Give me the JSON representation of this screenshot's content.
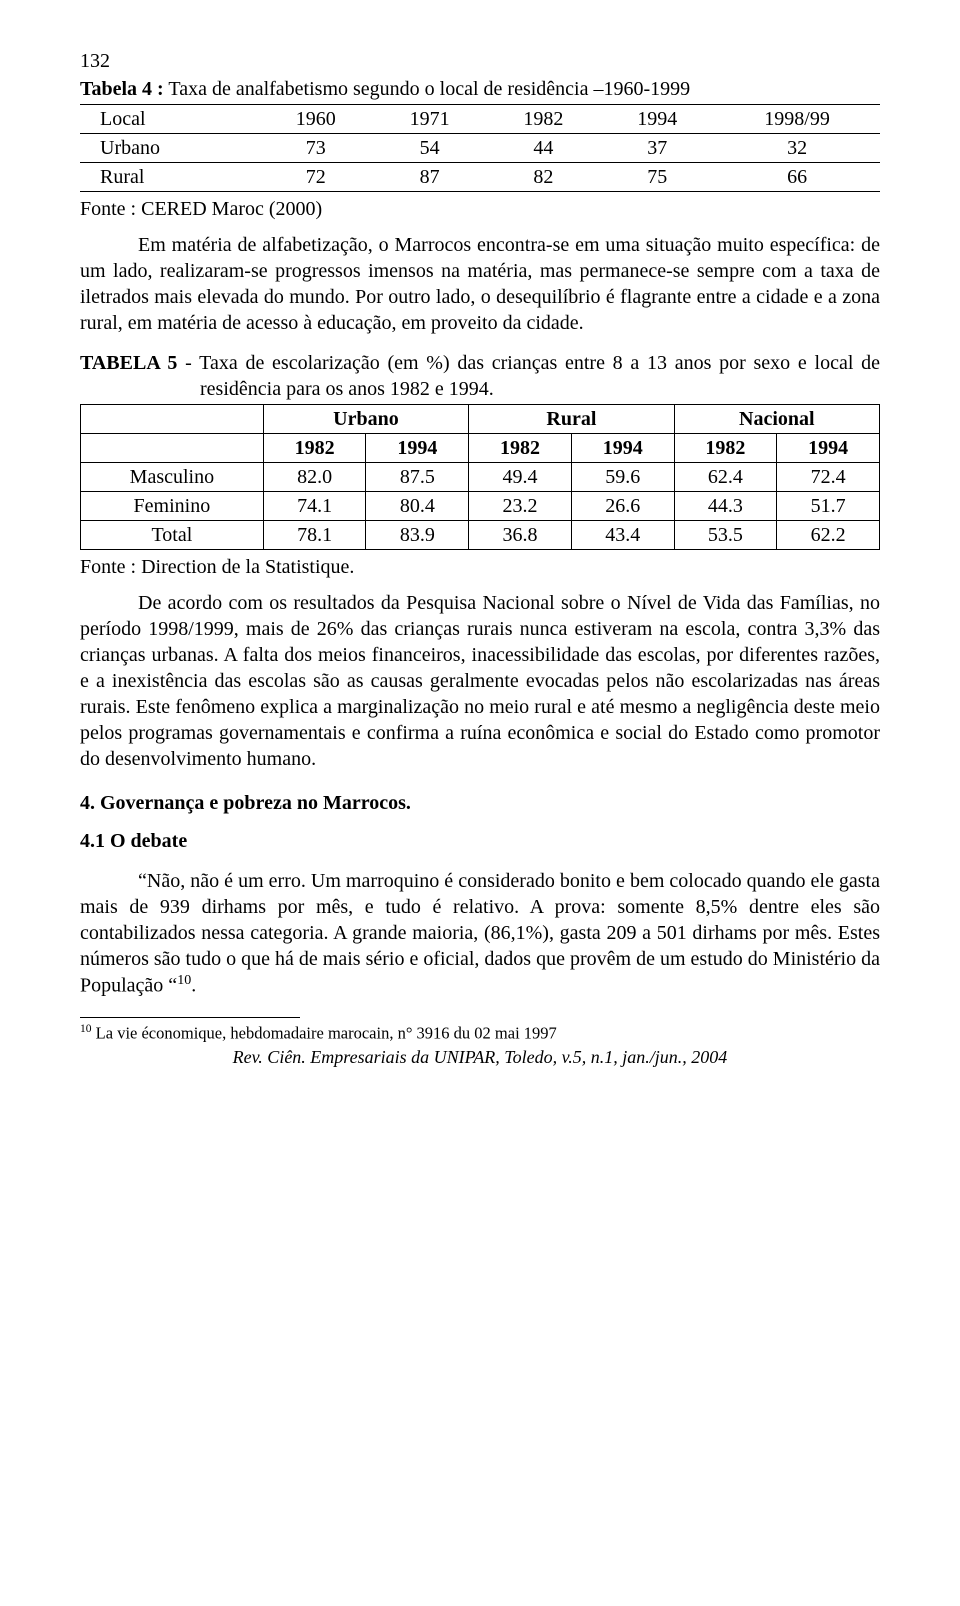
{
  "pageNumber": "132",
  "table4": {
    "title_lead": "Tabela 4 :",
    "title_rest": " Taxa de analfabetismo segundo o local de residência –1960-1999",
    "headers": [
      "Local",
      "1960",
      "1971",
      "1982",
      "1994",
      "1998/99"
    ],
    "rows": [
      {
        "label": "Urbano",
        "v": [
          "73",
          "54",
          "44",
          "37",
          "32"
        ]
      },
      {
        "label": "Rural",
        "v": [
          "72",
          "87",
          "82",
          "75",
          "66"
        ]
      }
    ],
    "source": "Fonte : CERED Maroc (2000)"
  },
  "para1": "Em matéria de alfabetização, o Marrocos encontra-se em uma situação muito específica: de um lado, realizaram-se progressos imensos na matéria, mas permanece-se sempre com a taxa de iletrados mais elevada do mundo. Por outro lado, o desequilíbrio é flagrante entre a cidade e a zona rural, em matéria de acesso à educação, em proveito da cidade.",
  "table5": {
    "title_lead": "TABELA 5",
    "title_rest": " - Taxa de escolarização (em %) das crianças entre 8 a 13 anos por sexo e local de residência para os anos 1982 e 1994.",
    "groupHeaders": [
      "Urbano",
      "Rural",
      "Nacional"
    ],
    "yearHeaders": [
      "1982",
      "1994",
      "1982",
      "1994",
      "1982",
      "1994"
    ],
    "rows": [
      {
        "label": "Masculino",
        "v": [
          "82.0",
          "87.5",
          "49.4",
          "59.6",
          "62.4",
          "72.4"
        ]
      },
      {
        "label": "Feminino",
        "v": [
          "74.1",
          "80.4",
          "23.2",
          "26.6",
          "44.3",
          "51.7"
        ]
      },
      {
        "label": "Total",
        "v": [
          "78.1",
          "83.9",
          "36.8",
          "43.4",
          "53.5",
          "62.2"
        ]
      }
    ],
    "source": "Fonte : Direction de la Statistique."
  },
  "para2": "De acordo com os resultados da Pesquisa Nacional sobre o Nível de Vida das Famílias, no período 1998/1999, mais de 26% das crianças rurais nunca estiveram na escola, contra 3,3% das crianças urbanas. A falta dos meios financeiros, inacessibilidade das escolas, por diferentes razões, e a inexistência das escolas são as causas geralmente evocadas pelos não escolarizadas nas áreas rurais. Este fenômeno explica a marginalização no meio rural e até mesmo a negligência deste meio pelos programas governamentais e confirma a ruína econômica e social do Estado como promotor do desenvolvimento humano.",
  "section4": "4. Governança e pobreza no Marrocos.",
  "section41": "4.1 O debate",
  "para3_a": "“Não, não é um erro. Um marroquino é considerado bonito e bem colocado quando ele gasta mais de 939 dirhams por mês, e tudo é relativo. A prova: somente 8,5% dentre eles são contabilizados nessa categoria. A grande maioria, (86,1%), gasta 209 a 501 dirhams por mês. Estes números são tudo o que há de mais sério e oficial, dados que provêm de um estudo do Ministério da População “",
  "para3_sup": "10",
  "para3_b": ".",
  "footnote_marker": "10",
  "footnote_text": " La vie économique, hebdomadaire marocain, n° 3916 du 02 mai 1997",
  "journal": "Rev. Ciên. Empresariais da UNIPAR, Toledo, v.5, n.1, jan./jun., 2004"
}
